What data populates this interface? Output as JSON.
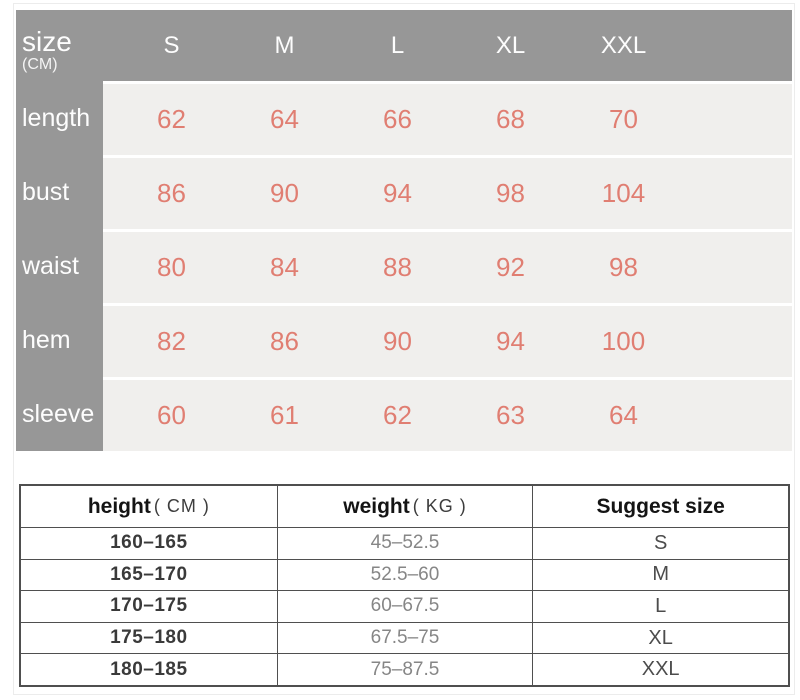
{
  "colors": {
    "table_gray": "#979797",
    "cell_bg": "#f0efed",
    "value_salmon": "#e07e72",
    "border_dark": "#4f4f4f",
    "header_text": "#fdfdfd"
  },
  "size_chart": {
    "title": "size",
    "unit": "(CM)",
    "columns": [
      "S",
      "M",
      "L",
      "XL",
      "XXL"
    ],
    "rows": [
      {
        "label": "length",
        "values": [
          62,
          64,
          66,
          68,
          70
        ]
      },
      {
        "label": "bust",
        "values": [
          86,
          90,
          94,
          98,
          104
        ]
      },
      {
        "label": "waist",
        "values": [
          80,
          84,
          88,
          92,
          98
        ]
      },
      {
        "label": "hem",
        "values": [
          82,
          86,
          90,
          94,
          100
        ]
      },
      {
        "label": "sleeve",
        "values": [
          60,
          61,
          62,
          63,
          64
        ]
      }
    ]
  },
  "fit_table": {
    "headers": [
      {
        "label": "height",
        "unit": "( CM )"
      },
      {
        "label": "weight",
        "unit": "( KG )"
      },
      {
        "label": "Suggest size",
        "unit": ""
      }
    ],
    "rows": [
      {
        "height": "160–165",
        "weight": "45–52.5",
        "size": "S"
      },
      {
        "height": "165–170",
        "weight": "52.5–60",
        "size": "M"
      },
      {
        "height": "170–175",
        "weight": "60–67.5",
        "size": "L"
      },
      {
        "height": "175–180",
        "weight": "67.5–75",
        "size": "XL"
      },
      {
        "height": "180–185",
        "weight": "75–87.5",
        "size": "XXL"
      }
    ]
  }
}
